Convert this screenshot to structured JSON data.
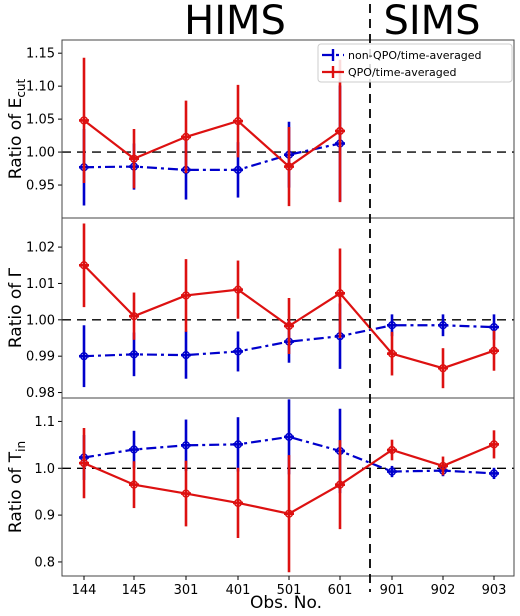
{
  "chart_data": {
    "type": "line",
    "state_labels": [
      "HIMS",
      "SIMS"
    ],
    "xlabel": "Obs. No.",
    "categories": [
      "144",
      "145",
      "301",
      "401",
      "501",
      "601",
      "901",
      "902",
      "903"
    ],
    "state_boundary_after_index": 5,
    "legend": {
      "placement": "top-right",
      "entries": [
        "non-QPO/time-averaged",
        "QPO/time-averaged"
      ]
    },
    "colors": {
      "non_qpo": "#0000cc",
      "qpo": "#dd1111"
    },
    "panels": [
      {
        "ylabel": "Ratio of E",
        "ylabel_sub": "cut",
        "ylim": [
          0.9,
          1.17
        ],
        "yticks": [
          0.95,
          1.0,
          1.05,
          1.1,
          1.15
        ],
        "ytick_labels": [
          "0.95",
          "1.00",
          "1.05",
          "1.10",
          "1.15"
        ],
        "reference": 1.0,
        "series": [
          {
            "name": "non-QPO/time-averaged",
            "key": "non_qpo",
            "values": [
              0.977,
              0.978,
              0.973,
              0.973,
              0.996,
              1.013,
              null,
              null,
              null
            ],
            "errors": [
              0.058,
              0.035,
              0.045,
              0.042,
              0.05,
              0.088,
              null,
              null,
              null
            ]
          },
          {
            "name": "QPO/time-averaged",
            "key": "qpo",
            "values": [
              1.048,
              0.99,
              1.023,
              1.047,
              0.978,
              1.032,
              null,
              null,
              null
            ],
            "errors": [
              0.095,
              0.045,
              0.055,
              0.055,
              0.06,
              0.108,
              null,
              null,
              null
            ]
          }
        ]
      },
      {
        "ylabel": "Ratio of Γ",
        "ylabel_sub": "",
        "ylim": [
          0.9785,
          1.028
        ],
        "yticks": [
          0.98,
          0.99,
          1.0,
          1.01,
          1.02
        ],
        "ytick_labels": [
          "0.98",
          "0.99",
          "1.00",
          "1.01",
          "1.02"
        ],
        "reference": 1.0,
        "series": [
          {
            "name": "non-QPO/time-averaged",
            "key": "non_qpo",
            "values": [
              0.99,
              0.9905,
              0.9903,
              0.9913,
              0.994,
              0.9955,
              0.9985,
              0.9985,
              0.998
            ],
            "errors": [
              0.0085,
              0.006,
              0.0065,
              0.0055,
              0.0058,
              0.009,
              0.003,
              0.003,
              0.0035
            ]
          },
          {
            "name": "QPO/time-averaged",
            "key": "qpo",
            "values": [
              1.015,
              1.001,
              1.0067,
              1.0083,
              0.9983,
              1.0073,
              0.9907,
              0.9867,
              0.9915
            ],
            "errors": [
              0.0115,
              0.0065,
              0.01,
              0.008,
              0.0077,
              0.0123,
              0.006,
              0.0055,
              0.0055
            ]
          }
        ]
      },
      {
        "ylabel": "Ratio of T",
        "ylabel_sub": "in",
        "ylim": [
          0.77,
          1.15
        ],
        "yticks": [
          0.8,
          0.9,
          1.0,
          1.1
        ],
        "ytick_labels": [
          "0.8",
          "0.9",
          "1.0",
          "1.1"
        ],
        "reference": 1.0,
        "series": [
          {
            "name": "non-QPO/time-averaged",
            "key": "non_qpo",
            "values": [
              1.023,
              1.04,
              1.049,
              1.051,
              1.067,
              1.037,
              0.993,
              0.995,
              0.989
            ],
            "errors": [
              0.048,
              0.04,
              0.055,
              0.058,
              0.08,
              0.09,
              0.012,
              0.012,
              0.012
            ]
          },
          {
            "name": "QPO/time-averaged",
            "key": "qpo",
            "values": [
              1.011,
              0.965,
              0.946,
              0.926,
              0.903,
              0.965,
              1.039,
              1.005,
              1.051
            ],
            "errors": [
              0.075,
              0.05,
              0.07,
              0.075,
              0.125,
              0.095,
              0.022,
              0.02,
              0.03
            ]
          }
        ]
      }
    ]
  }
}
